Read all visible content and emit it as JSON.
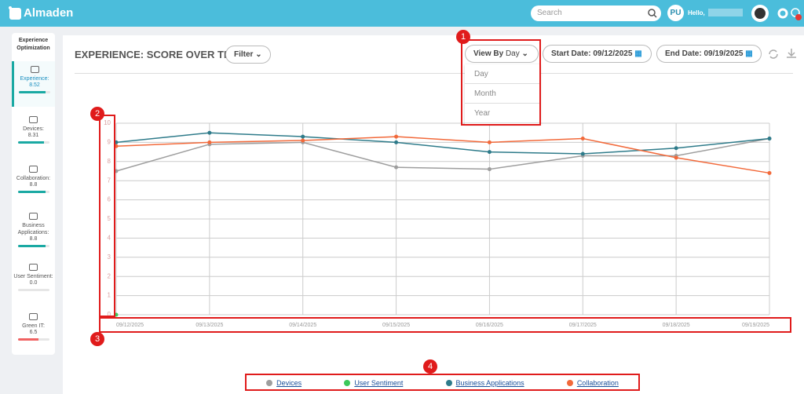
{
  "header": {
    "logo": "Almaden",
    "search_placeholder": "Search",
    "avatar": "PU",
    "greeting": "Hello,"
  },
  "sidebar": {
    "heading": "Experience Optimization",
    "items": [
      {
        "label": "Experience:",
        "score": "8.52",
        "bar_color": "#1aa9a3"
      },
      {
        "label": "Devices:",
        "score": "8.31",
        "bar_color": "#1aa9a3"
      },
      {
        "label": "Collaboration:",
        "score": "8.8",
        "bar_color": "#1aa9a3"
      },
      {
        "label": "Business Applications:",
        "score": "8.8",
        "bar_color": "#1aa9a3"
      },
      {
        "label": "User Sentiment:",
        "score": "0.0",
        "bar_color": "#1aa9a3"
      },
      {
        "label": "Green IT:",
        "score": "6.5",
        "bar_color": "#f06262"
      }
    ]
  },
  "toolbar": {
    "title": "EXPERIENCE: SCORE OVER TIME",
    "filter": "Filter",
    "view_by_label": "View By",
    "view_by_value": "Day",
    "view_options": [
      "Day",
      "Month",
      "Year"
    ],
    "start_date": "Start Date: 09/12/2025",
    "end_date": "End Date: 09/19/2025"
  },
  "annotations": [
    "1",
    "2",
    "3",
    "4"
  ],
  "chart_data": {
    "type": "line",
    "x": [
      "09/12/2025",
      "09/13/2025",
      "09/14/2025",
      "09/15/2025",
      "09/16/2025",
      "09/17/2025",
      "09/18/2025",
      "09/19/2025"
    ],
    "series": [
      {
        "name": "Devices",
        "color": "#9e9e9e",
        "values": [
          7.5,
          8.9,
          9.0,
          7.7,
          7.6,
          8.3,
          8.3,
          9.2
        ]
      },
      {
        "name": "User Sentiment",
        "color": "#3cc95b",
        "values": [
          0,
          null,
          null,
          null,
          null,
          null,
          null,
          null
        ]
      },
      {
        "name": "Business Applications",
        "color": "#2e7b8a",
        "values": [
          9.0,
          9.5,
          9.3,
          9.0,
          8.5,
          8.4,
          8.7,
          9.2
        ]
      },
      {
        "name": "Collaboration",
        "color": "#f2693a",
        "values": [
          8.8,
          9.0,
          9.1,
          9.3,
          9.0,
          9.2,
          8.2,
          7.4
        ]
      }
    ],
    "ylim": [
      0,
      10
    ],
    "yticks": [
      0,
      1,
      2,
      3,
      4,
      5,
      6,
      7,
      8,
      9,
      10
    ],
    "grid": true
  }
}
